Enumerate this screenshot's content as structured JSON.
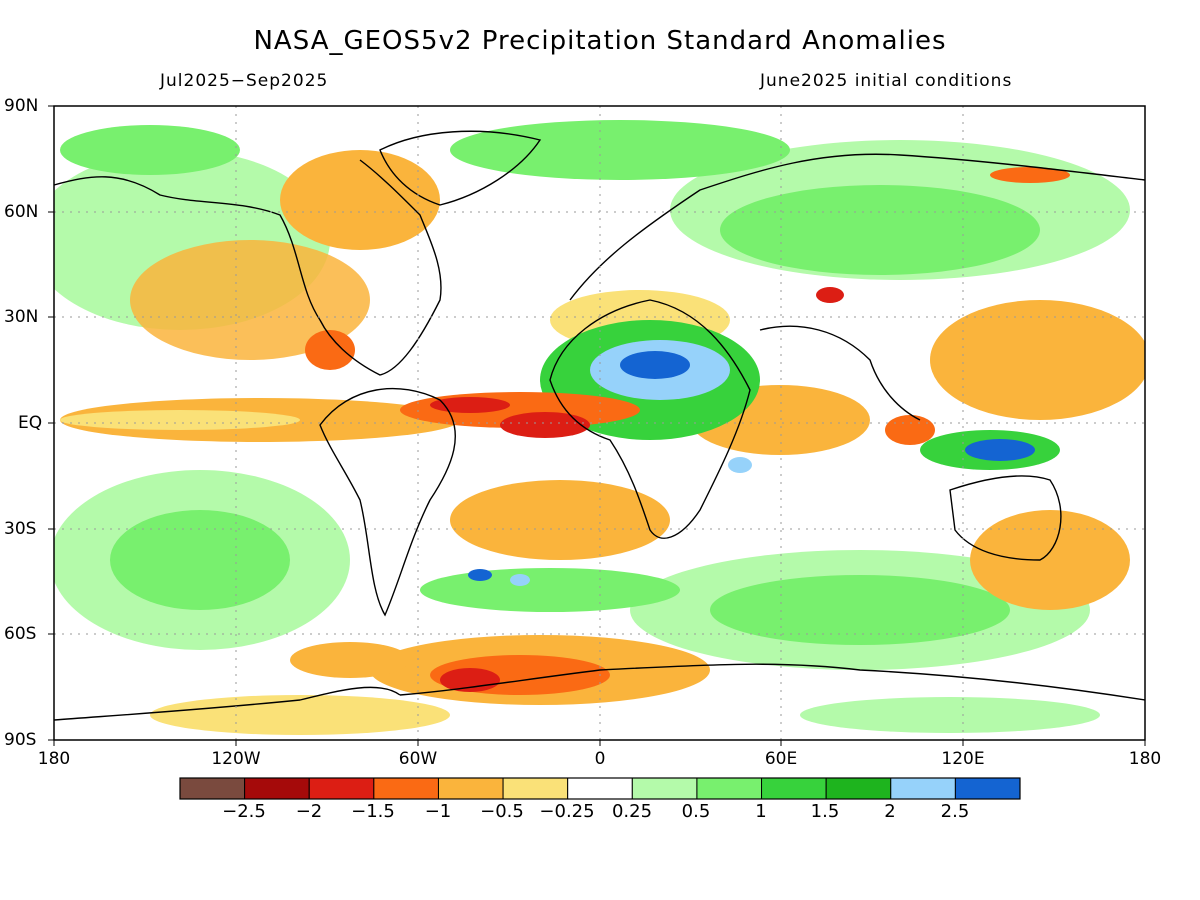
{
  "header": {
    "title": "NASA_GEOS5v2 Precipitation Standard Anomalies",
    "period": "Jul2025-Sep2025",
    "init": "June2025 initial conditions"
  },
  "map": {
    "lat_labels": [
      "90N",
      "60N",
      "30N",
      "EQ",
      "30S",
      "60S",
      "90S"
    ],
    "lon_labels": [
      "180",
      "120W",
      "60W",
      "0",
      "60E",
      "120E",
      "180"
    ]
  },
  "legend": {
    "colors": [
      "#7a4a3e",
      "#a50a0a",
      "#dc1e14",
      "#fa6a14",
      "#fab43c",
      "#fae178",
      "#ffffff",
      "#b4faaa",
      "#78f06e",
      "#37d23c",
      "#1eb41e",
      "#96d2fa",
      "#1464d2"
    ],
    "labels": [
      "-2.5",
      "-2",
      "-1.5",
      "-1",
      "-0.5",
      "-0.25",
      "0.25",
      "0.5",
      "1",
      "1.5",
      "2",
      "2.5"
    ]
  },
  "anomalies": [
    {
      "region": "central-africa",
      "color": "#37d23c"
    },
    {
      "region": "tropical-atlantic",
      "color": "#dc1e14"
    },
    {
      "region": "maritime-continent",
      "color": "#1464d2"
    },
    {
      "region": "southern-ocean-sector",
      "color": "#fa6a14"
    },
    {
      "region": "east-pacific",
      "color": "#fab43c"
    }
  ]
}
